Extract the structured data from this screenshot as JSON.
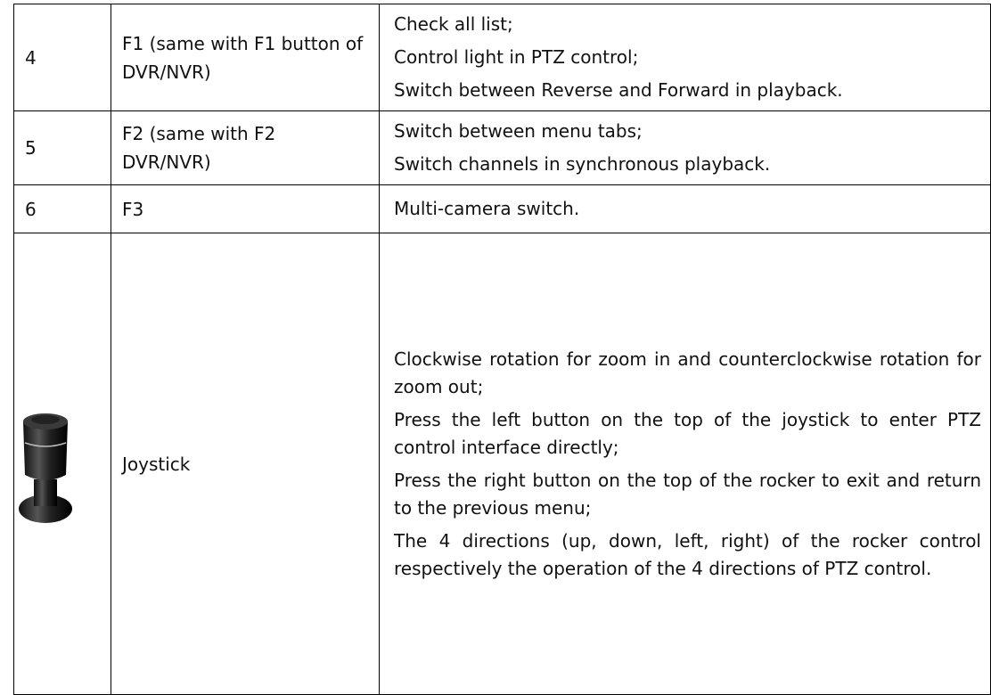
{
  "table": {
    "rows": [
      {
        "no": "4",
        "key": "F1 (same with F1 button of DVR/NVR)",
        "functions": [
          "Check all list;",
          "Control light in PTZ control;",
          "Switch between Reverse and Forward in playback."
        ]
      },
      {
        "no": "5",
        "key": "F2 (same with F2 DVR/NVR)",
        "functions": [
          "Switch between menu tabs;",
          "Switch channels in synchronous playback."
        ]
      },
      {
        "no": "6",
        "key": "F3",
        "functions": [
          "Multi-camera switch."
        ]
      },
      {
        "key": "Joystick",
        "functions": [
          "Clockwise rotation for zoom in and counterclockwise rotation for zoom out;",
          "Press the left button on the top of the joystick to enter PTZ control interface directly;",
          "Press the right button on the top of the rocker to exit and return to the previous menu;",
          "The 4 directions (up, down, left, right) of the rocker control respectively the operation of the 4 directions of PTZ control."
        ]
      }
    ]
  }
}
